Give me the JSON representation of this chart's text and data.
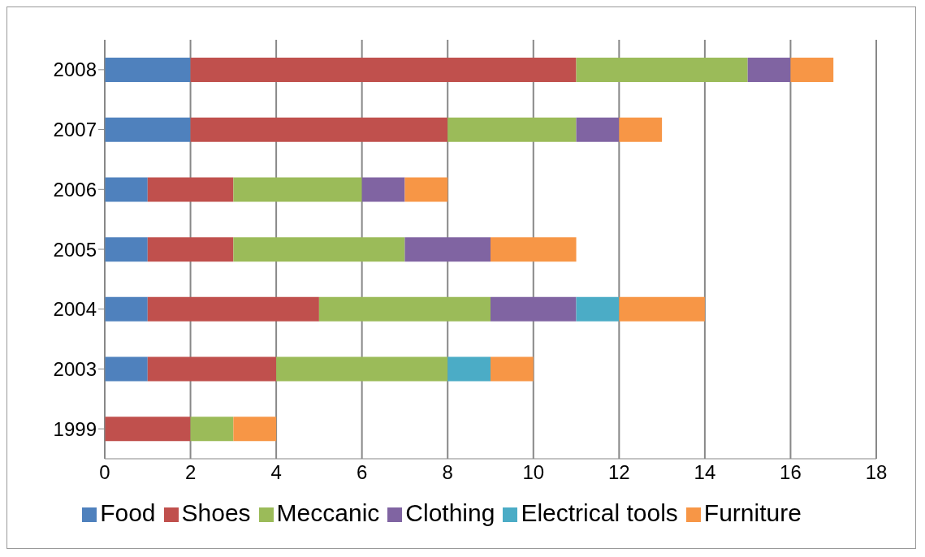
{
  "chart_data": {
    "type": "bar",
    "orientation": "horizontal",
    "stacked": true,
    "categories": [
      "2008",
      "2007",
      "2006",
      "2005",
      "2004",
      "2003",
      "1999"
    ],
    "series": [
      {
        "name": "Food",
        "color": "#4f81bd",
        "values": [
          2,
          2,
          1,
          1,
          1,
          1,
          0
        ]
      },
      {
        "name": "Shoes",
        "color": "#c0504d",
        "values": [
          9,
          6,
          2,
          2,
          4,
          3,
          2
        ]
      },
      {
        "name": "Meccanic",
        "color": "#9bbb59",
        "values": [
          4,
          3,
          3,
          4,
          4,
          4,
          1
        ]
      },
      {
        "name": "Clothing",
        "color": "#8064a2",
        "values": [
          1,
          1,
          1,
          2,
          2,
          0,
          0
        ]
      },
      {
        "name": "Electrical tools",
        "color": "#4bacc6",
        "values": [
          0,
          0,
          0,
          0,
          1,
          1,
          0
        ]
      },
      {
        "name": "Furniture",
        "color": "#f79646",
        "values": [
          1,
          1,
          1,
          2,
          2,
          1,
          1
        ]
      }
    ],
    "xlim": [
      0,
      18
    ],
    "xticks": [
      0,
      2,
      4,
      6,
      8,
      10,
      12,
      14,
      16,
      18
    ],
    "grid": "x",
    "legend": "bottom"
  }
}
